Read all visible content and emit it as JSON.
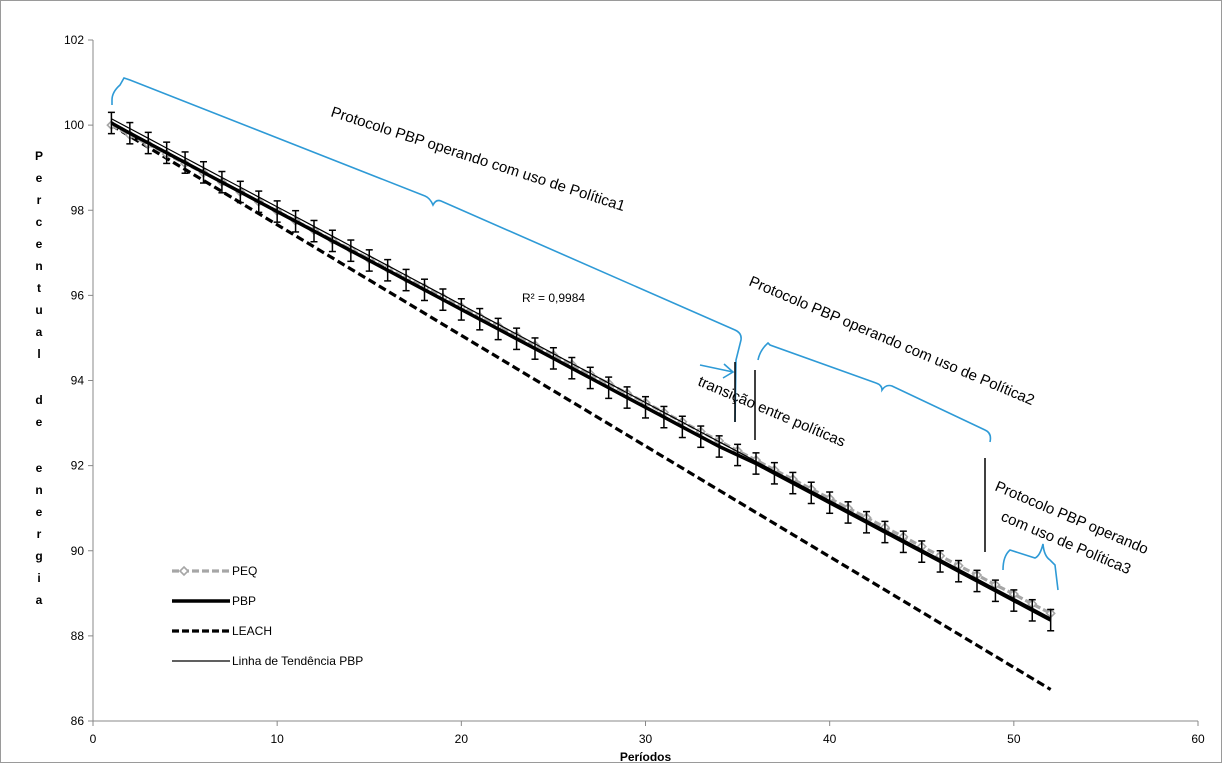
{
  "chart_data": {
    "type": "line",
    "xlabel": "Períodos",
    "ylabel": "Percentual de energia",
    "xlim": [
      0,
      60
    ],
    "ylim": [
      86,
      102
    ],
    "xticks": [
      "0",
      "10",
      "20",
      "30",
      "40",
      "50",
      "60"
    ],
    "yticks": [
      "86",
      "88",
      "90",
      "92",
      "94",
      "96",
      "98",
      "100",
      "102"
    ],
    "x": [
      1,
      2,
      3,
      4,
      5,
      6,
      7,
      8,
      9,
      10,
      11,
      12,
      13,
      14,
      15,
      16,
      17,
      18,
      19,
      20,
      21,
      22,
      23,
      24,
      25,
      26,
      27,
      28,
      29,
      30,
      31,
      32,
      33,
      34,
      35,
      36,
      37,
      38,
      39,
      40,
      41,
      42,
      43,
      44,
      45,
      46,
      47,
      48,
      49,
      50,
      51,
      52
    ],
    "series": [
      {
        "name": "PEQ",
        "color": "#a6a6a6",
        "style": "dashed-diamond",
        "values": [
          100,
          99.77,
          99.55,
          99.32,
          99.1,
          98.88,
          98.66,
          98.43,
          98.2,
          97.98,
          97.75,
          97.53,
          97.3,
          97.08,
          96.85,
          96.63,
          96.4,
          96.18,
          95.95,
          95.73,
          95.5,
          95.28,
          95.05,
          94.83,
          94.6,
          94.38,
          94.15,
          93.93,
          93.7,
          93.48,
          93.25,
          93.03,
          92.8,
          92.58,
          92.35,
          92.13,
          91.9,
          91.68,
          91.45,
          91.23,
          91.0,
          90.78,
          90.55,
          90.33,
          90.1,
          89.88,
          89.65,
          89.43,
          89.2,
          88.98,
          88.75,
          88.53
        ]
      },
      {
        "name": "PBP",
        "color": "#000000",
        "style": "solid-thick",
        "values": [
          100.05,
          99.81,
          99.58,
          99.35,
          99.12,
          98.89,
          98.66,
          98.43,
          98.2,
          97.97,
          97.74,
          97.51,
          97.28,
          97.05,
          96.82,
          96.59,
          96.36,
          96.13,
          95.9,
          95.67,
          95.44,
          95.21,
          94.98,
          94.75,
          94.52,
          94.29,
          94.06,
          93.83,
          93.6,
          93.37,
          93.14,
          92.91,
          92.68,
          92.45,
          92.25,
          92.05,
          91.82,
          91.59,
          91.36,
          91.13,
          90.9,
          90.67,
          90.44,
          90.21,
          89.98,
          89.75,
          89.52,
          89.29,
          89.06,
          88.83,
          88.6,
          88.37
        ]
      },
      {
        "name": "LEACH",
        "color": "#000000",
        "style": "dashed-thick",
        "values": [
          100,
          99.74,
          99.48,
          99.22,
          98.96,
          98.7,
          98.44,
          98.18,
          97.92,
          97.66,
          97.4,
          97.14,
          96.88,
          96.62,
          96.36,
          96.1,
          95.84,
          95.58,
          95.32,
          95.06,
          94.8,
          94.54,
          94.28,
          94.02,
          93.76,
          93.5,
          93.24,
          92.98,
          92.72,
          92.46,
          92.2,
          91.94,
          91.68,
          91.42,
          91.16,
          90.9,
          90.64,
          90.38,
          90.12,
          89.86,
          89.6,
          89.34,
          89.08,
          88.82,
          88.56,
          88.3,
          88.04,
          87.78,
          87.52,
          87.26,
          87.0,
          86.74
        ]
      },
      {
        "name": "Linha de Tendência PBP",
        "color": "#000000",
        "style": "solid-thin",
        "values": [
          100.15,
          99.92,
          99.69,
          99.46,
          99.23,
          99.0,
          98.77,
          98.54,
          98.31,
          98.08,
          97.85,
          97.62,
          97.39,
          97.16,
          96.93,
          96.7,
          96.47,
          96.24,
          96.01,
          95.78,
          95.55,
          95.32,
          95.09,
          94.86,
          94.63,
          94.4,
          94.17,
          93.94,
          93.71,
          93.48,
          93.25,
          93.02,
          92.79,
          92.56,
          92.33,
          92.1,
          91.87,
          91.64,
          91.41,
          91.18,
          90.95,
          90.72,
          90.49,
          90.26,
          90.03,
          89.8,
          89.57,
          89.34,
          89.11,
          88.88,
          88.65,
          88.42
        ]
      }
    ],
    "error_bar": 0.25,
    "r2_label": "R² = 0,9984",
    "annotations": [
      "Protocolo PBP operando  com uso de Política1",
      "Protocolo PBP operando  com uso de Política2",
      "Protocolo PBP operando",
      "com uso de Política3",
      "transição entre políticas"
    ],
    "legend_position": "bottom-left",
    "grid": false
  }
}
